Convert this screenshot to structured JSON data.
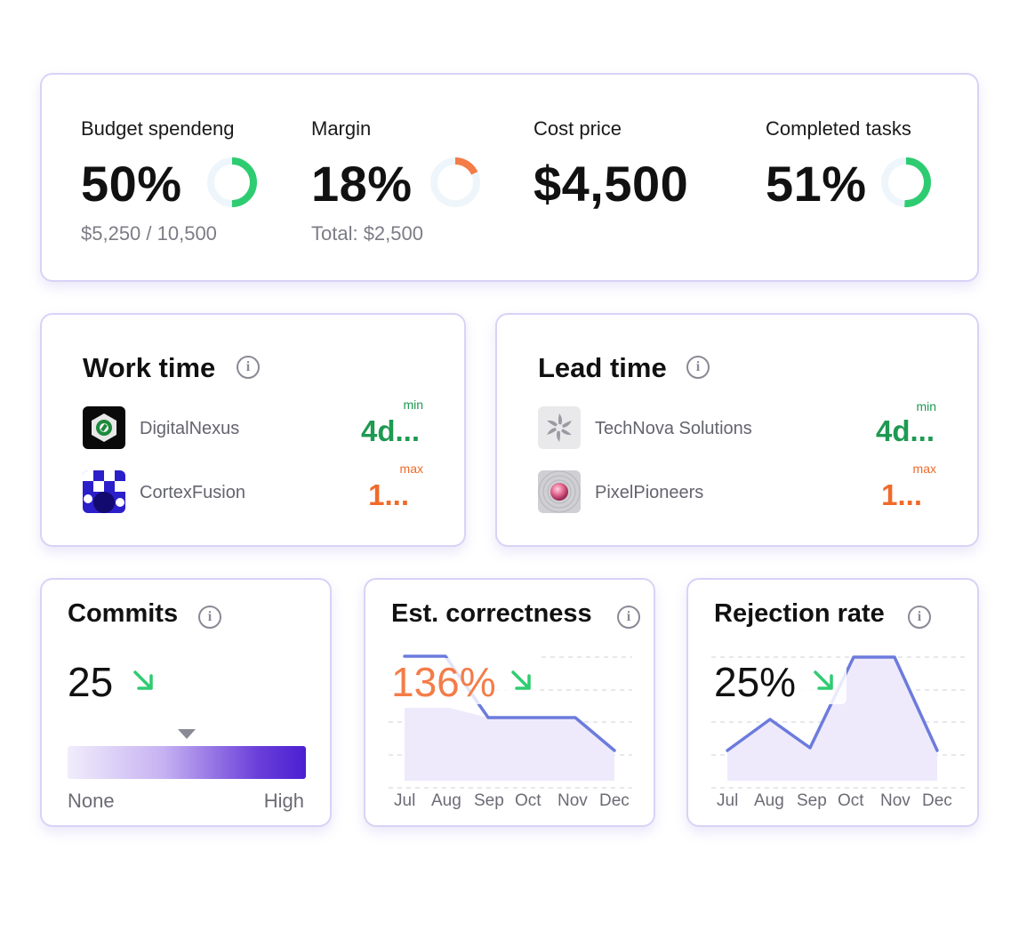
{
  "kpis": {
    "budget": {
      "label": "Budget spendeng",
      "value": "50%",
      "sub": "$5,250 / 10,500",
      "fraction": 0.5,
      "color": "#2ecc71"
    },
    "margin": {
      "label": "Margin",
      "value": "18%",
      "sub": "Total: $2,500",
      "fraction": 0.18,
      "color": "#f47c48"
    },
    "cost": {
      "label": "Cost price",
      "value": "$4,500"
    },
    "completed": {
      "label": "Completed tasks",
      "value": "51%",
      "fraction": 0.51,
      "color": "#2ecc71"
    }
  },
  "work_time": {
    "title": "Work time",
    "rows": [
      {
        "name": "DigitalNexus",
        "tag": "min",
        "value": "4d..."
      },
      {
        "name": "CortexFusion",
        "tag": "max",
        "value": "1..."
      }
    ]
  },
  "lead_time": {
    "title": "Lead time",
    "rows": [
      {
        "name": "TechNova Solutions",
        "tag": "min",
        "value": "4d..."
      },
      {
        "name": "PixelPioneers",
        "tag": "max",
        "value": "1..."
      }
    ]
  },
  "commits": {
    "title": "Commits",
    "value": "25",
    "trend": "down",
    "scale_low": "None",
    "scale_high": "High",
    "marker_level": 0.5
  },
  "correctness": {
    "title": "Est. correctness",
    "value": "136%",
    "trend": "down",
    "value_color": "#f47c48"
  },
  "rejection": {
    "title": "Rejection rate",
    "value": "25%",
    "trend": "down"
  },
  "months": [
    "Jul",
    "Aug",
    "Sep",
    "Oct",
    "Nov",
    "Dec"
  ],
  "colors": {
    "accent": "#6c7bdc",
    "area": "#eeeafc",
    "green": "#2ecc71",
    "orange": "#f47c48",
    "purple": "#4b1fd1"
  }
}
